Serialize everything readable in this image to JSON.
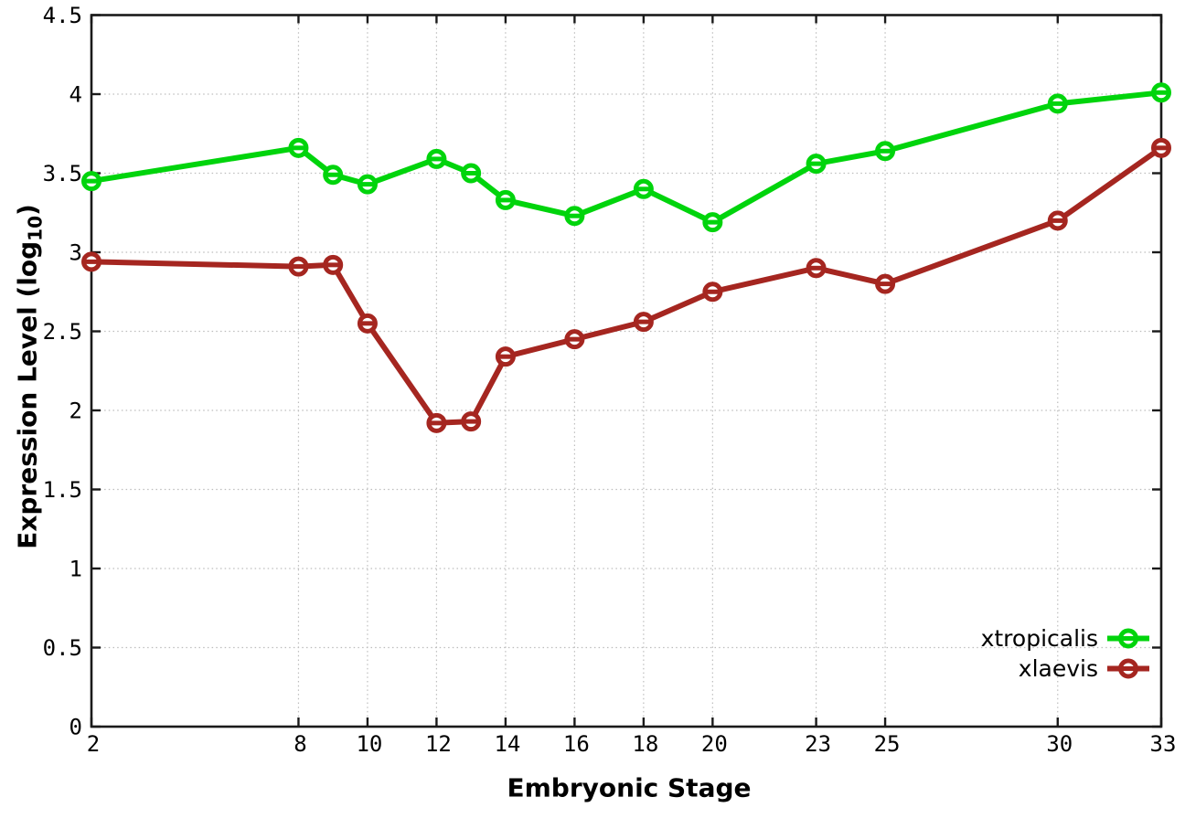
{
  "page": {
    "background": "#ffffff"
  },
  "chart_data": {
    "type": "line",
    "title": "",
    "xlabel": "Embryonic Stage",
    "ylabel": "Expression Level (log10)",
    "ylabel_parts": {
      "main": "Expression Level (log",
      "sub": "10",
      "close": ")"
    },
    "xlim": [
      2,
      33
    ],
    "ylim": [
      0,
      4.5
    ],
    "grid": "dotted",
    "legend_position": "inside-bottom-right",
    "x": [
      2,
      8,
      9,
      10,
      12,
      13,
      14,
      16,
      18,
      20,
      23,
      25,
      30,
      33
    ],
    "xtick_values": [
      2,
      8,
      10,
      12,
      14,
      16,
      18,
      20,
      23,
      25,
      30,
      33
    ],
    "xtick_labels": [
      "2",
      "8",
      "10",
      "12",
      "14",
      "16",
      "18",
      "20",
      "23",
      "25",
      "30",
      "33"
    ],
    "ytick_values": [
      0,
      0.5,
      1,
      1.5,
      2,
      2.5,
      3,
      3.5,
      4,
      4.5
    ],
    "ytick_labels": [
      "0",
      "0.5",
      "1",
      "1.5",
      "2",
      "2.5",
      "3",
      "3.5",
      "4",
      "4.5"
    ],
    "series": [
      {
        "name": "xtropicalis",
        "color": "#00d40c",
        "marker": "open-circle",
        "values": [
          3.45,
          3.66,
          3.49,
          3.43,
          3.59,
          3.5,
          3.33,
          3.23,
          3.4,
          3.19,
          3.56,
          3.64,
          3.94,
          4.01
        ]
      },
      {
        "name": "xlaevis",
        "color": "#a52620",
        "marker": "open-circle",
        "values": [
          2.94,
          2.91,
          2.92,
          2.55,
          1.92,
          1.93,
          2.34,
          2.45,
          2.56,
          2.75,
          2.9,
          2.8,
          3.2,
          3.66
        ]
      }
    ],
    "colors": {
      "grid": "#bdbdbd",
      "axis": "#1a1a1a",
      "text": "#000000",
      "marker_fill": "#ffffff"
    }
  }
}
